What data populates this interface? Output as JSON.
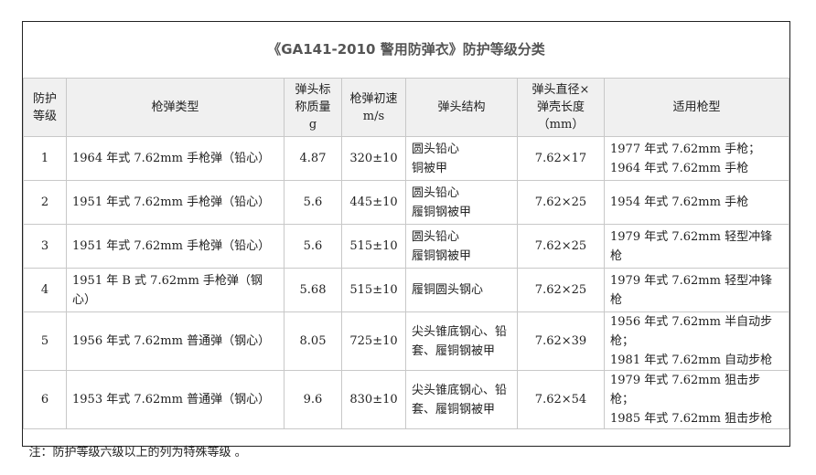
{
  "table": {
    "title": "《GA141-2010 警用防弹衣》防护等级分类",
    "columns": [
      [
        "防护",
        "等级"
      ],
      [
        "枪弹类型"
      ],
      [
        "弹头标",
        "称质量",
        "g"
      ],
      [
        "枪弹初速",
        "m/s"
      ],
      [
        "弹头结构"
      ],
      [
        "弹头直径×",
        "弹壳长度",
        "（mm）"
      ],
      [
        "适用枪型"
      ]
    ],
    "rows": [
      [
        [
          "1"
        ],
        [
          "1964 年式 7.62mm 手枪弹（铅心）"
        ],
        [
          "4.87"
        ],
        [
          "320±10"
        ],
        [
          "圆头铅心",
          "铜被甲"
        ],
        [
          "7.62×17"
        ],
        [
          "1977 年式 7.62mm 手枪；",
          "1964 年式 7.62mm 手枪"
        ]
      ],
      [
        [
          "2"
        ],
        [
          "1951 年式 7.62mm 手枪弹（铅心）"
        ],
        [
          "5.6"
        ],
        [
          "445±10"
        ],
        [
          "圆头铅心",
          "履铜钢被甲"
        ],
        [
          "7.62×25"
        ],
        [
          "1954 年式 7.62mm 手枪"
        ]
      ],
      [
        [
          "3"
        ],
        [
          "1951 年式 7.62mm 手枪弹（铅心）"
        ],
        [
          "5.6"
        ],
        [
          "515±10"
        ],
        [
          "圆头铅心",
          "履铜钢被甲"
        ],
        [
          "7.62×25"
        ],
        [
          "1979 年式 7.62mm 轻型冲锋枪"
        ]
      ],
      [
        [
          "4"
        ],
        [
          "1951 年 B 式 7.62mm 手枪弹（钢心）"
        ],
        [
          "5.68"
        ],
        [
          "515±10"
        ],
        [
          "履铜圆头钢心"
        ],
        [
          "7.62×25"
        ],
        [
          "1979 年式 7.62mm 轻型冲锋枪"
        ]
      ],
      [
        [
          "5"
        ],
        [
          "1956 年式 7.62mm 普通弹（钢心）"
        ],
        [
          "8.05"
        ],
        [
          "725±10"
        ],
        [
          "尖头锥底钢心、铅",
          "套、履铜钢被甲"
        ],
        [
          "7.62×39"
        ],
        [
          "1956 年式 7.62mm 半自动步枪；",
          "1981 年式 7.62mm 自动步枪"
        ]
      ],
      [
        [
          "6"
        ],
        [
          "1953 年式 7.62mm 普通弹（钢心）"
        ],
        [
          "9.6"
        ],
        [
          "830±10"
        ],
        [
          "尖头锥底钢心、铅",
          "套、履铜钢被甲"
        ],
        [
          "7.62×54"
        ],
        [
          "1979 年式 7.62mm 狙击步枪；",
          "1985 年式 7.62mm 狙击步枪"
        ]
      ]
    ],
    "note": "注：防护等级六级以上的列为特殊等级 。"
  }
}
